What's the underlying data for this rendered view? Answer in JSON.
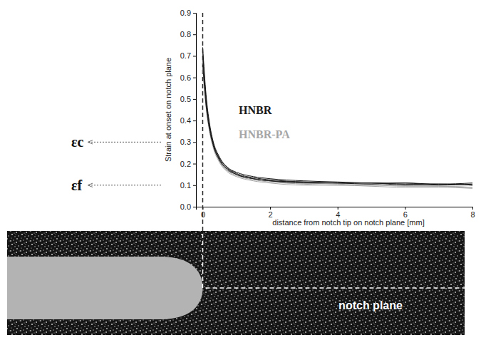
{
  "chart_data": {
    "type": "line",
    "x_label": "distance from notch tip on notch plane [mm]",
    "y_label": "Strain at onset on notch plane",
    "x": [
      0,
      0.1,
      0.2,
      0.3,
      0.5,
      0.75,
      1,
      1.5,
      2,
      3,
      4,
      5,
      6,
      7,
      8
    ],
    "series": [
      {
        "name": "HNBR",
        "color": "#1a1a1a",
        "values": [
          0.74,
          0.52,
          0.39,
          0.31,
          0.23,
          0.18,
          0.155,
          0.135,
          0.125,
          0.115,
          0.11,
          0.11,
          0.105,
          0.105,
          0.1
        ]
      },
      {
        "name": "HNBR",
        "color": "#1a1a1a",
        "values": [
          0.7,
          0.49,
          0.37,
          0.3,
          0.22,
          0.175,
          0.15,
          0.13,
          0.12,
          0.115,
          0.11,
          0.105,
          0.11,
          0.1,
          0.105
        ]
      },
      {
        "name": "HNBR",
        "color": "#1a1a1a",
        "values": [
          0.66,
          0.47,
          0.36,
          0.29,
          0.215,
          0.17,
          0.15,
          0.13,
          0.12,
          0.11,
          0.11,
          0.11,
          0.1,
          0.105,
          0.1
        ]
      },
      {
        "name": "HNBR",
        "color": "#1a1a1a",
        "values": [
          0.72,
          0.5,
          0.38,
          0.3,
          0.225,
          0.18,
          0.16,
          0.14,
          0.13,
          0.12,
          0.115,
          0.11,
          0.11,
          0.105,
          0.11
        ]
      },
      {
        "name": "HNBR-PA",
        "color": "#a6a6a6",
        "values": [
          0.68,
          0.48,
          0.36,
          0.29,
          0.21,
          0.165,
          0.145,
          0.125,
          0.115,
          0.105,
          0.1,
          0.1,
          0.095,
          0.095,
          0.09
        ]
      },
      {
        "name": "HNBR-PA",
        "color": "#a6a6a6",
        "values": [
          0.64,
          0.46,
          0.35,
          0.28,
          0.205,
          0.16,
          0.14,
          0.12,
          0.11,
          0.1,
          0.1,
          0.095,
          0.09,
          0.09,
          0.085
        ]
      },
      {
        "name": "HNBR-PA",
        "color": "#a6a6a6",
        "values": [
          0.7,
          0.49,
          0.37,
          0.295,
          0.215,
          0.17,
          0.15,
          0.13,
          0.12,
          0.11,
          0.105,
          0.1,
          0.1,
          0.095,
          0.09
        ]
      }
    ],
    "xlim": [
      -0.2,
      8
    ],
    "ylim": [
      0,
      0.9
    ],
    "xticks": [
      0,
      2,
      4,
      6,
      8
    ],
    "yticks": [
      {
        "value": 0,
        "label": "0.0"
      },
      0.1,
      0.2,
      0.3,
      0.4,
      0.5,
      0.6,
      0.7,
      0.8,
      0.9
    ],
    "legend": "center",
    "annotations": [
      {
        "text": "εc",
        "y": 0.3
      },
      {
        "text": "εf",
        "y": 0.1
      }
    ],
    "image_label": "notch plane"
  }
}
